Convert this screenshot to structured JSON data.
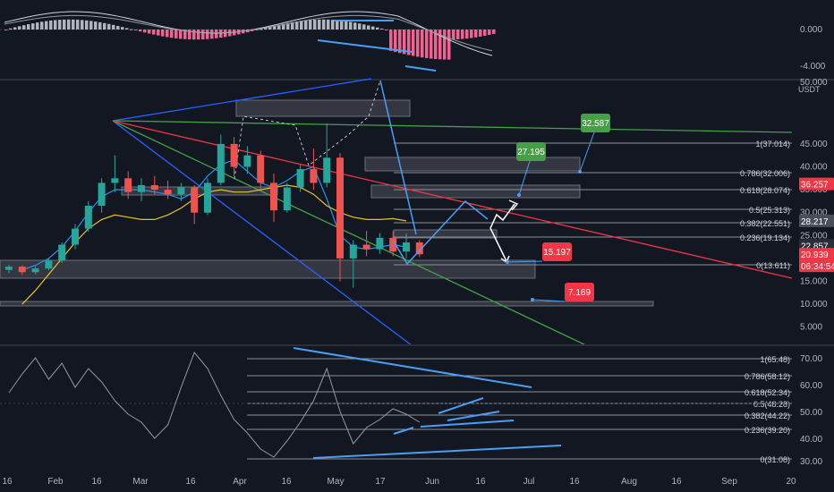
{
  "theme": {
    "background": "#131722",
    "panel_separator": "#2a2e39",
    "axis_text": "#b2b5be",
    "fib_line": "#8b8f99",
    "zone_fill": "#ffffff",
    "candle_up": "#26a69a",
    "candle_down": "#ef5350",
    "ma_fast": "#2196f3",
    "ma_slow": "#e6c229",
    "trend_blue": "#2962ff",
    "trend_green": "#43a047",
    "trend_red": "#f23645",
    "annot_blue": "#4a9ff5",
    "macd_pos": "#b2b5be",
    "macd_neg": "#f06292"
  },
  "time_axis": {
    "labels": [
      "16",
      "Feb",
      "16",
      "Mar",
      "16",
      "Apr",
      "16",
      "May",
      "17",
      "Jun",
      "16",
      "Jul",
      "16",
      "Aug",
      "16",
      "Sep",
      "20"
    ]
  },
  "price_axis": {
    "unit": "USDT",
    "ticks": [
      "50.000",
      "45.000",
      "40.000",
      "35.000",
      "30.000",
      "25.000",
      "20.000",
      "15.000",
      "10.000",
      "5.000"
    ],
    "markers": [
      {
        "value": "36.257",
        "color": "#f23645"
      },
      {
        "value": "28.217",
        "color": "#4a4e59"
      },
      {
        "value": "22.857",
        "color": "#2a2e39"
      },
      {
        "value": "20.939",
        "color": "#f23645"
      },
      {
        "value": "06:34:54",
        "color": "#f23645"
      }
    ]
  },
  "macd_axis": {
    "ticks": [
      "0.000",
      "-4.000"
    ]
  },
  "rsi_axis": {
    "ticks": [
      "70.00",
      "60.00",
      "50.00",
      "40.00",
      "30.00"
    ]
  },
  "fib_price": [
    {
      "level": 1,
      "label": "1(37.014)"
    },
    {
      "level": 0.786,
      "label": "0.786(32.006)"
    },
    {
      "level": 0.618,
      "label": "0.618(28.074)"
    },
    {
      "level": 0.5,
      "label": "0.5(25.313)"
    },
    {
      "level": 0.382,
      "label": "0.382(22.551)"
    },
    {
      "level": 0.236,
      "label": "0.236(19.134)"
    },
    {
      "level": 0,
      "label": "0(13.611)"
    }
  ],
  "fib_rsi": [
    {
      "level": 1,
      "label": "1(65.48)"
    },
    {
      "level": 0.786,
      "label": "0.786(58.12)"
    },
    {
      "level": 0.618,
      "label": "0.618(52.34)"
    },
    {
      "level": 0.5,
      "label": "0.5(48.28)"
    },
    {
      "level": 0.382,
      "label": "0.382(44.22)"
    },
    {
      "level": 0.236,
      "label": "0.236(39.20)"
    },
    {
      "level": 0,
      "label": "0(31.08)"
    }
  ],
  "price_targets": [
    {
      "value": "32.587",
      "color": "#43a047"
    },
    {
      "value": "27.195",
      "color": "#43a047"
    },
    {
      "value": "15.197",
      "color": "#f23645"
    },
    {
      "value": "7.169",
      "color": "#f23645"
    }
  ],
  "chart_data": {
    "type": "candlestick",
    "title": "",
    "x_range": [
      "January 16",
      "September 20"
    ],
    "y_unit": "USDT",
    "ylim": [
      0,
      51
    ],
    "grid": false,
    "candles": [
      {
        "d": "Jan 16",
        "o": 17.5,
        "h": 18.6,
        "l": 16.8,
        "c": 18.2
      },
      {
        "d": "Jan 21",
        "o": 18.2,
        "h": 18.5,
        "l": 16.4,
        "c": 17.0
      },
      {
        "d": "Jan 26",
        "o": 17.0,
        "h": 18.3,
        "l": 16.5,
        "c": 17.8
      },
      {
        "d": "Jan 31",
        "o": 17.8,
        "h": 20.0,
        "l": 17.4,
        "c": 19.5
      },
      {
        "d": "Feb 5",
        "o": 19.5,
        "h": 23.5,
        "l": 19.0,
        "c": 23.0
      },
      {
        "d": "Feb 10",
        "o": 23.0,
        "h": 27.5,
        "l": 22.0,
        "c": 26.5
      },
      {
        "d": "Feb 15",
        "o": 26.5,
        "h": 32.5,
        "l": 25.8,
        "c": 31.5
      },
      {
        "d": "Feb 20",
        "o": 31.5,
        "h": 37.5,
        "l": 30.0,
        "c": 36.5
      },
      {
        "d": "Feb 25",
        "o": 36.5,
        "h": 42.5,
        "l": 34.5,
        "c": 37.5
      },
      {
        "d": "Mar 2",
        "o": 37.5,
        "h": 39.0,
        "l": 33.0,
        "c": 34.5
      },
      {
        "d": "Mar 7",
        "o": 34.5,
        "h": 37.5,
        "l": 32.5,
        "c": 36.0
      },
      {
        "d": "Mar 12",
        "o": 36.0,
        "h": 38.0,
        "l": 34.0,
        "c": 35.0
      },
      {
        "d": "Mar 17",
        "o": 35.0,
        "h": 37.0,
        "l": 33.0,
        "c": 34.0
      },
      {
        "d": "Mar 22",
        "o": 34.0,
        "h": 36.5,
        "l": 32.5,
        "c": 35.5
      },
      {
        "d": "Mar 27",
        "o": 35.5,
        "h": 36.0,
        "l": 27.5,
        "c": 30.0
      },
      {
        "d": "Apr 1",
        "o": 30.0,
        "h": 37.5,
        "l": 29.5,
        "c": 36.5
      },
      {
        "d": "Apr 6",
        "o": 36.5,
        "h": 47.0,
        "l": 36.0,
        "c": 45.0
      },
      {
        "d": "Apr 11",
        "o": 45.0,
        "h": 46.5,
        "l": 38.0,
        "c": 40.0
      },
      {
        "d": "Apr 16",
        "o": 40.0,
        "h": 44.5,
        "l": 38.5,
        "c": 42.5
      },
      {
        "d": "Apr 21",
        "o": 42.5,
        "h": 43.5,
        "l": 35.0,
        "c": 36.5
      },
      {
        "d": "Apr 26",
        "o": 36.5,
        "h": 38.5,
        "l": 28.0,
        "c": 30.5
      },
      {
        "d": "May 1",
        "o": 30.5,
        "h": 36.5,
        "l": 30.0,
        "c": 35.5
      },
      {
        "d": "May 6",
        "o": 35.5,
        "h": 40.5,
        "l": 34.5,
        "c": 39.5
      },
      {
        "d": "May 11",
        "o": 39.5,
        "h": 44.0,
        "l": 35.0,
        "c": 36.5
      },
      {
        "d": "May 16",
        "o": 36.5,
        "h": 49.5,
        "l": 35.5,
        "c": 42.0
      },
      {
        "d": "May 21",
        "o": 42.0,
        "h": 43.0,
        "l": 15.0,
        "c": 20.0
      },
      {
        "d": "May 26",
        "o": 20.0,
        "h": 24.0,
        "l": 13.6,
        "c": 23.0
      },
      {
        "d": "May 31",
        "o": 23.0,
        "h": 26.0,
        "l": 20.5,
        "c": 22.0
      },
      {
        "d": "Jun 5",
        "o": 22.0,
        "h": 25.5,
        "l": 21.0,
        "c": 24.5
      },
      {
        "d": "Jun 10",
        "o": 24.5,
        "h": 26.0,
        "l": 20.5,
        "c": 21.5
      },
      {
        "d": "Jun 15",
        "o": 21.5,
        "h": 25.5,
        "l": 20.0,
        "c": 23.5
      },
      {
        "d": "Jun 20",
        "o": 23.5,
        "h": 24.0,
        "l": 20.3,
        "c": 20.9
      }
    ],
    "moving_averages": [
      {
        "color": "#2196f3",
        "values": [
          17.5,
          18.5,
          20.0,
          22.5,
          26.0,
          30.0,
          33.5,
          35.0,
          35.0,
          35.0,
          34.5,
          34.0,
          33.0,
          34.5,
          38.0,
          40.5,
          41.5,
          39.0,
          36.5,
          35.5,
          37.0,
          39.0,
          40.0,
          33.0,
          25.0,
          22.5,
          22.0,
          22.5,
          23.0,
          22.5
        ]
      },
      {
        "color": "#e6c229",
        "values": [
          10.0,
          13.0,
          16.5,
          20.0,
          23.5,
          26.5,
          28.5,
          29.5,
          29.0,
          28.5,
          28.5,
          29.5,
          31.0,
          33.0,
          34.5,
          35.0,
          34.5,
          34.5,
          35.0,
          35.5,
          36.0,
          35.5,
          34.0,
          31.5,
          30.0,
          29.0,
          28.5,
          28.5,
          28.7,
          28.2
        ]
      }
    ],
    "macd": {
      "ylim": [
        -5,
        2
      ],
      "histogram_note": "",
      "zero_line": 0
    },
    "rsi": {
      "ylim": [
        28,
        72
      ],
      "values": [
        55,
        62,
        68,
        60,
        66,
        57,
        64,
        59,
        52,
        47,
        44,
        38,
        43,
        57,
        70,
        64,
        54,
        45,
        40,
        34,
        31,
        37,
        44,
        52,
        64,
        48,
        36,
        42,
        45,
        49,
        47,
        44
      ]
    }
  }
}
